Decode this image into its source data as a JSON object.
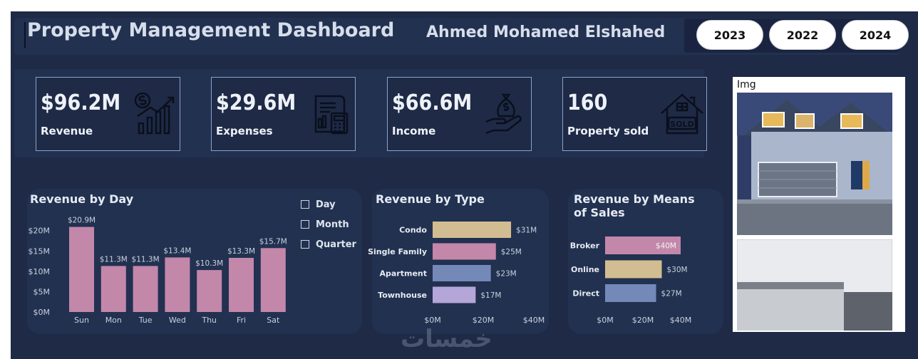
{
  "header": {
    "title": "Property Management Dashboard",
    "author": "Ahmed Mohamed Elshahed",
    "years": [
      "2023",
      "2022",
      "2024"
    ]
  },
  "kpis": [
    {
      "value": "$96.2M",
      "label": "Revenue",
      "icon": "revenue-chart-icon"
    },
    {
      "value": "$29.6M",
      "label": "Expenses",
      "icon": "invoice-calculator-icon"
    },
    {
      "value": "$66.6M",
      "label": "Income",
      "icon": "money-bag-hand-icon"
    },
    {
      "value": "160",
      "label": "Property sold",
      "icon": "house-sold-sign-icon"
    }
  ],
  "slicer": {
    "items": [
      "Day",
      "Month",
      "Quarter"
    ]
  },
  "image_panel": {
    "label": "Img"
  },
  "watermark": "خمسات",
  "colors": {
    "background": "#1e2a46",
    "panel": "#223150",
    "pink": "#c387aa",
    "tan": "#d2bd92",
    "blue": "#7489b8",
    "lavender": "#b4a6d8"
  },
  "chart_data": [
    {
      "type": "bar",
      "title": "Revenue by Day",
      "categories": [
        "Sun",
        "Mon",
        "Tue",
        "Wed",
        "Thu",
        "Fri",
        "Sat"
      ],
      "values": [
        20.9,
        11.3,
        11.3,
        13.4,
        10.3,
        13.3,
        15.7
      ],
      "data_labels": [
        "$20.9M",
        "$11.3M",
        "$11.3M",
        "$13.4M",
        "$10.3M",
        "$13.3M",
        "$15.7M"
      ],
      "y_ticks": [
        "$0M",
        "$5M",
        "$10M",
        "$15M",
        "$20M"
      ],
      "ylim": [
        0,
        21
      ],
      "color": "#c387aa"
    },
    {
      "type": "bar",
      "orientation": "horizontal",
      "title": "Revenue by Type",
      "categories": [
        "Condo",
        "Single Family",
        "Apartment",
        "Townhouse"
      ],
      "values": [
        31,
        25,
        23,
        17
      ],
      "data_labels": [
        "$31M",
        "$25M",
        "$23M",
        "$17M"
      ],
      "colors": [
        "#d2bd92",
        "#c387aa",
        "#7489b8",
        "#b4a6d8"
      ],
      "x_ticks": [
        "$0M",
        "$20M",
        "$40M"
      ],
      "xlim": [
        0,
        40
      ]
    },
    {
      "type": "bar",
      "orientation": "horizontal",
      "title": "Revenue by Means of Sales",
      "categories": [
        "Broker",
        "Online",
        "Direct"
      ],
      "values": [
        40,
        30,
        27
      ],
      "data_labels": [
        "$40M",
        "$30M",
        "$27M"
      ],
      "colors": [
        "#c387aa",
        "#d2bd92",
        "#7489b8"
      ],
      "x_ticks": [
        "$0M",
        "$20M",
        "$40M"
      ],
      "xlim": [
        0,
        40
      ]
    }
  ]
}
